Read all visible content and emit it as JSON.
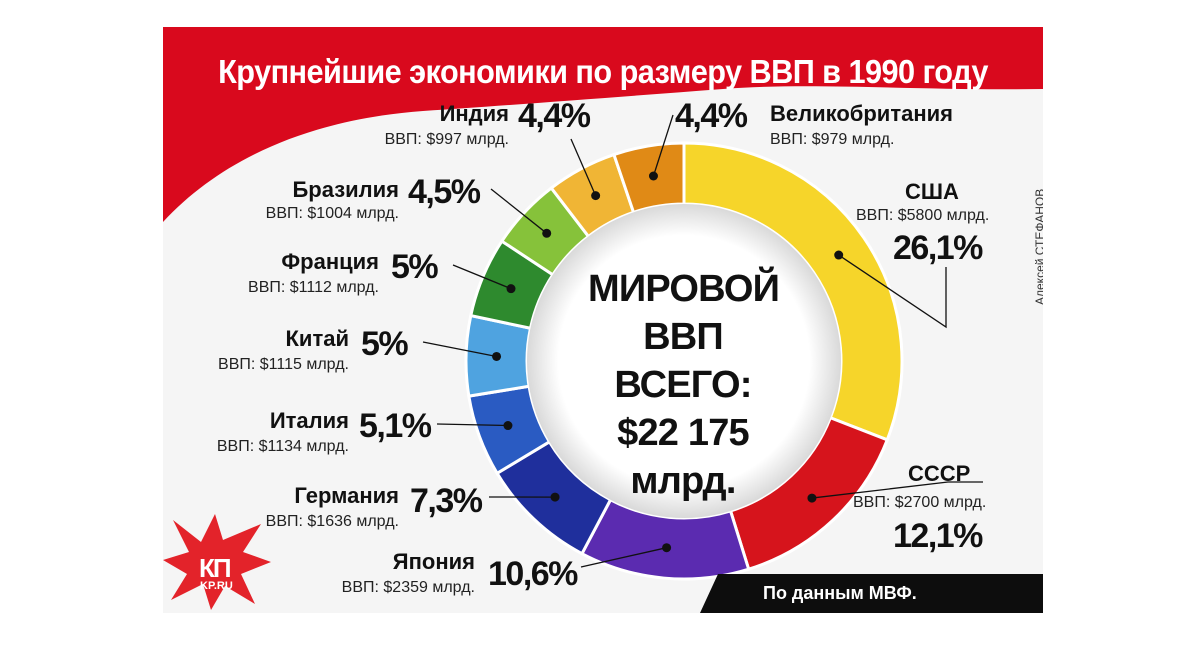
{
  "title": "Крупнейшие экономики по размеру ВВП в 1990 году",
  "center": {
    "line1": "МИРОВОЙ",
    "line2": "ВВП ВСЕГО:",
    "line3": "$22 175",
    "line4": "млрд."
  },
  "author": "Алексей СТЕФАНОВ",
  "source": "По данным МВФ.",
  "logo": {
    "main": "КП",
    "sub": "KP.RU"
  },
  "colors": {
    "title_band": "#d9091d",
    "source_bar": "#0d0d0d"
  },
  "chart_data": {
    "type": "pie",
    "style": "donut",
    "total": "$22 175 млрд.",
    "slices": [
      {
        "name": "США",
        "gdp": "ВВП: $5800 млрд.",
        "percent_label": "26,1%",
        "value": 26.1,
        "color": "#f6d52a"
      },
      {
        "name": "СССР",
        "gdp": "ВВП: $2700 млрд.",
        "percent_label": "12,1%",
        "value": 12.1,
        "color": "#d6141c"
      },
      {
        "name": "Япония",
        "gdp": "ВВП: $2359 млрд.",
        "percent_label": "10,6%",
        "value": 10.6,
        "color": "#5b2bb0"
      },
      {
        "name": "Германия",
        "gdp": "ВВП: $1636 млрд.",
        "percent_label": "7,3%",
        "value": 7.3,
        "color": "#1f2f9c"
      },
      {
        "name": "Италия",
        "gdp": "ВВП: $1134 млрд.",
        "percent_label": "5,1%",
        "value": 5.1,
        "color": "#2a5bc2"
      },
      {
        "name": "Китай",
        "gdp": "ВВП: $1115 млрд.",
        "percent_label": "5%",
        "value": 5.0,
        "color": "#4fa3e0"
      },
      {
        "name": "Франция",
        "gdp": "ВВП: $1112 млрд.",
        "percent_label": "5%",
        "value": 5.0,
        "color": "#2e8a2e"
      },
      {
        "name": "Бразилия",
        "gdp": "ВВП: $1004 млрд.",
        "percent_label": "4,5%",
        "value": 4.5,
        "color": "#86c23a"
      },
      {
        "name": "Индия",
        "gdp": "ВВП: $997 млрд.",
        "percent_label": "4,4%",
        "value": 4.4,
        "color": "#f0b535"
      },
      {
        "name": "Великобритания",
        "gdp": "ВВП: $979 млрд.",
        "percent_label": "4,4%",
        "value": 4.4,
        "color": "#e08a16"
      }
    ]
  }
}
